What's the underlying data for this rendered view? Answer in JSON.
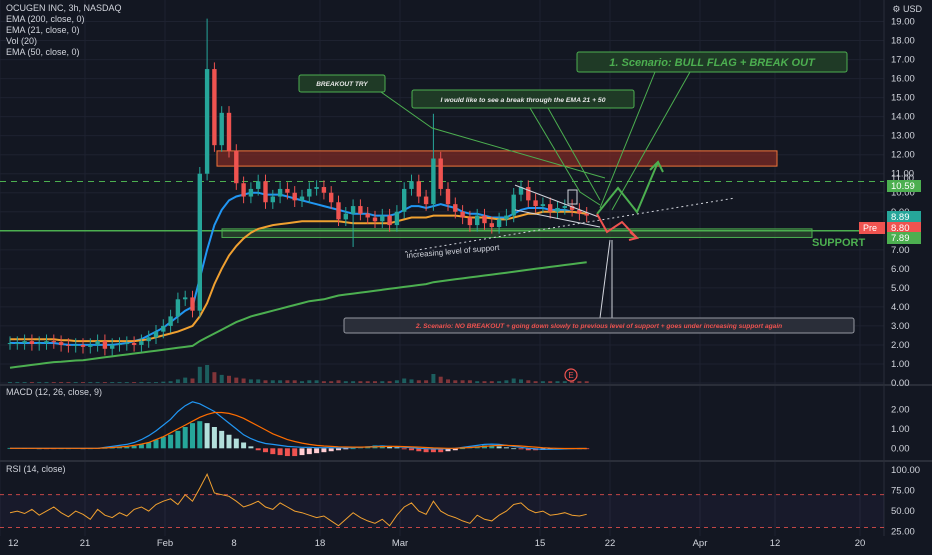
{
  "header": {
    "symbol_line": "OCUGEN INC, 3h, NASDAQ",
    "indicators": [
      "EMA (200, close, 0)",
      "EMA (21, close, 0)",
      "Vol (20)",
      "EMA (50, close, 0)"
    ],
    "currency": "USD",
    "currency_icon": "settings-gear-icon"
  },
  "colors": {
    "background": "#131722",
    "grid": "#1e2230",
    "candle_up": "#26a69a",
    "candle_down": "#ef5350",
    "ema21": "#2196f3",
    "ema50": "#f0a030",
    "ema200": "#4caf50",
    "annotation": "#4caf50",
    "resistance_box": "#7b2a24"
  },
  "chart_data": [
    {
      "type": "candlestick",
      "title": "OCUGEN INC, 3h, NASDAQ",
      "ylim": [
        0,
        19.5
      ],
      "y_ticks": [
        "19.00",
        "18.00",
        "17.00",
        "16.00",
        "15.00",
        "14.00",
        "13.00",
        "12.00",
        "11.00",
        "10.00",
        "9.00",
        "8.00",
        "7.00",
        "6.00",
        "5.00",
        "4.00",
        "3.00",
        "2.00",
        "1.00",
        "0.00"
      ],
      "x_ticks": [
        "12",
        "21",
        "Feb",
        "8",
        "18",
        "Mar",
        "15",
        "22",
        "Apr",
        "12",
        "20"
      ],
      "price_badges": [
        {
          "label": "11.00",
          "kind": "level"
        },
        {
          "label": "10.59",
          "kind": "level"
        },
        {
          "label": "8.89",
          "kind": "last"
        },
        {
          "label": "8.80",
          "kind": "pre",
          "prefix": "Pre"
        },
        {
          "label": "7.89",
          "kind": "support"
        }
      ],
      "levels": {
        "resistance_box": [
          11.4,
          12.2
        ],
        "dashed_line": 10.59,
        "support_line": 8.0,
        "support_box": [
          7.65,
          8.1
        ]
      },
      "price_path": [
        2.1,
        2.1,
        2.2,
        2.05,
        2.1,
        2.2,
        2.15,
        2.0,
        1.95,
        2.0,
        1.9,
        2.0,
        2.2,
        1.8,
        2.0,
        2.05,
        2.1,
        2.0,
        2.2,
        2.4,
        2.7,
        3.0,
        3.5,
        4.4,
        4.5,
        3.8,
        11.0,
        16.5,
        12.5,
        14.2,
        12.2,
        10.5,
        9.8,
        10.2,
        10.6,
        9.5,
        9.8,
        10.2,
        10.0,
        9.6,
        9.8,
        10.2,
        10.3,
        10.0,
        9.5,
        8.6,
        8.9,
        9.3,
        8.9,
        8.7,
        8.5,
        8.8,
        8.3,
        9.0,
        10.2,
        10.6,
        9.8,
        9.4,
        11.8,
        10.2,
        9.4,
        9.0,
        8.7,
        8.3,
        8.8,
        8.4,
        8.2,
        8.6,
        8.8,
        9.9,
        10.3,
        9.6,
        9.3,
        9.4,
        9.0,
        9.2,
        9.3,
        9.1,
        8.9,
        8.8
      ],
      "series": [
        {
          "name": "EMA (21, close, 0)",
          "values": [
            2.1,
            2.1,
            2.1,
            2.1,
            2.1,
            2.1,
            2.1,
            2.05,
            2.0,
            2.0,
            2.0,
            2.0,
            2.0,
            2.0,
            2.0,
            2.05,
            2.1,
            2.2,
            2.3,
            2.5,
            2.7,
            2.9,
            3.2,
            3.5,
            3.8,
            4.0,
            5.5,
            7.0,
            8.3,
            9.1,
            9.6,
            9.8,
            9.9,
            10.0,
            10.0,
            9.9,
            9.9,
            9.9,
            9.8,
            9.7,
            9.6,
            9.5,
            9.4,
            9.3,
            9.2,
            9.1,
            9.0,
            8.9,
            8.9,
            8.9,
            8.8,
            8.8,
            8.8,
            8.9,
            9.1,
            9.3,
            9.3,
            9.2,
            9.3,
            9.4,
            9.3,
            9.2,
            9.0,
            8.9,
            8.9,
            8.8,
            8.7,
            8.7,
            8.7,
            8.9,
            9.1,
            9.2,
            9.2,
            9.2,
            9.1,
            9.1,
            9.1,
            9.0,
            8.95,
            8.9
          ]
        },
        {
          "name": "EMA (50, close, 0)",
          "values": [
            2.3,
            2.3,
            2.3,
            2.3,
            2.3,
            2.3,
            2.3,
            2.25,
            2.25,
            2.2,
            2.2,
            2.2,
            2.2,
            2.2,
            2.2,
            2.2,
            2.2,
            2.2,
            2.25,
            2.3,
            2.4,
            2.5,
            2.6,
            2.7,
            2.85,
            3.0,
            3.5,
            4.2,
            5.2,
            6.0,
            6.7,
            7.2,
            7.6,
            7.9,
            8.1,
            8.2,
            8.3,
            8.35,
            8.4,
            8.45,
            8.5,
            8.5,
            8.5,
            8.5,
            8.5,
            8.5,
            8.45,
            8.4,
            8.4,
            8.4,
            8.4,
            8.4,
            8.4,
            8.5,
            8.6,
            8.7,
            8.7,
            8.7,
            8.8,
            8.8,
            8.8,
            8.8,
            8.75,
            8.7,
            8.7,
            8.7,
            8.65,
            8.6,
            8.6,
            8.7,
            8.8,
            8.9,
            8.9,
            9.0,
            9.0,
            9.0,
            9.0,
            9.0,
            8.95,
            8.9
          ]
        },
        {
          "name": "EMA (200, close, 0)",
          "values": [
            0.8,
            0.85,
            0.9,
            0.95,
            1.0,
            1.05,
            1.1,
            1.12,
            1.15,
            1.18,
            1.2,
            1.25,
            1.3,
            1.35,
            1.4,
            1.45,
            1.5,
            1.55,
            1.6,
            1.65,
            1.7,
            1.75,
            1.8,
            1.85,
            1.9,
            1.95,
            2.2,
            2.4,
            2.6,
            2.8,
            3.0,
            3.2,
            3.35,
            3.5,
            3.6,
            3.7,
            3.8,
            3.9,
            4.0,
            4.1,
            4.2,
            4.3,
            4.35,
            4.4,
            4.5,
            4.6,
            4.65,
            4.7,
            4.75,
            4.8,
            4.85,
            4.9,
            4.95,
            5.0,
            5.05,
            5.1,
            5.15,
            5.2,
            5.3,
            5.35,
            5.4,
            5.45,
            5.5,
            5.55,
            5.6,
            5.65,
            5.7,
            5.75,
            5.8,
            5.85,
            5.9,
            5.95,
            6.0,
            6.05,
            6.1,
            6.15,
            6.2,
            6.25,
            6.3,
            6.35
          ]
        }
      ],
      "volume": [
        0.1,
        0.1,
        0.1,
        0.1,
        0.1,
        0.1,
        0.1,
        0.1,
        0.1,
        0.1,
        0.1,
        0.1,
        0.1,
        0.1,
        0.1,
        0.1,
        0.1,
        0.1,
        0.1,
        0.1,
        0.1,
        0.15,
        0.2,
        0.4,
        0.6,
        0.5,
        1.8,
        2.0,
        1.2,
        0.9,
        0.8,
        0.6,
        0.5,
        0.4,
        0.4,
        0.3,
        0.3,
        0.3,
        0.3,
        0.3,
        0.2,
        0.3,
        0.3,
        0.2,
        0.2,
        0.3,
        0.2,
        0.2,
        0.2,
        0.2,
        0.2,
        0.2,
        0.2,
        0.3,
        0.5,
        0.4,
        0.3,
        0.3,
        1.0,
        0.7,
        0.4,
        0.3,
        0.3,
        0.3,
        0.2,
        0.2,
        0.2,
        0.2,
        0.3,
        0.5,
        0.4,
        0.3,
        0.2,
        0.2,
        0.2,
        0.2,
        0.2,
        0.2,
        0.2,
        0.2
      ]
    },
    {
      "type": "bar",
      "title": "MACD (12, 26, close, 9)",
      "ylim": [
        -0.5,
        2.7
      ],
      "y_ticks": [
        "2.00",
        "1.00",
        "0.00"
      ],
      "histogram": [
        0.02,
        0.02,
        0.01,
        0.01,
        0.0,
        -0.01,
        -0.01,
        0.0,
        0.0,
        0.01,
        0.0,
        0.0,
        0.01,
        0.02,
        0.03,
        0.05,
        0.08,
        0.12,
        0.2,
        0.3,
        0.45,
        0.6,
        0.7,
        0.9,
        1.1,
        1.3,
        1.4,
        1.3,
        1.1,
        0.9,
        0.7,
        0.5,
        0.3,
        0.1,
        -0.1,
        -0.2,
        -0.3,
        -0.35,
        -0.4,
        -0.4,
        -0.35,
        -0.3,
        -0.25,
        -0.2,
        -0.15,
        -0.1,
        -0.05,
        0.0,
        0.05,
        0.1,
        0.15,
        0.15,
        0.1,
        0.05,
        -0.05,
        -0.1,
        -0.15,
        -0.2,
        -0.2,
        -0.2,
        -0.15,
        -0.1,
        0.0,
        0.05,
        0.1,
        0.15,
        0.15,
        0.1,
        0.05,
        0.0,
        -0.05,
        -0.1,
        -0.1,
        -0.08,
        -0.05,
        -0.03,
        -0.02,
        -0.02,
        -0.01,
        -0.01
      ],
      "series": [
        {
          "name": "MACD",
          "values": [
            0.0,
            0.0,
            0.0,
            0.0,
            0.0,
            0.0,
            0.0,
            0.0,
            0.0,
            0.0,
            0.0,
            0.0,
            0.0,
            0.05,
            0.1,
            0.15,
            0.2,
            0.3,
            0.45,
            0.65,
            0.9,
            1.2,
            1.5,
            1.9,
            2.2,
            2.4,
            2.3,
            2.1,
            1.9,
            1.6,
            1.3,
            1.0,
            0.7,
            0.5,
            0.35,
            0.25,
            0.2,
            0.15,
            0.1,
            0.08,
            0.05,
            0.05,
            0.03,
            0.03,
            0.03,
            0.02,
            0.02,
            0.03,
            0.05,
            0.08,
            0.1,
            0.12,
            0.1,
            0.08,
            0.05,
            0.03,
            0.0,
            -0.02,
            -0.03,
            -0.03,
            -0.02,
            0.0,
            0.05,
            0.1,
            0.15,
            0.2,
            0.22,
            0.2,
            0.15,
            0.1,
            0.05,
            0.0,
            -0.03,
            -0.05,
            -0.05,
            -0.04,
            -0.03,
            -0.02,
            -0.01,
            -0.01
          ]
        },
        {
          "name": "Signal",
          "values": [
            0.0,
            0.0,
            0.0,
            0.0,
            0.0,
            0.0,
            0.0,
            0.0,
            0.0,
            0.0,
            0.0,
            0.0,
            0.0,
            0.02,
            0.04,
            0.07,
            0.1,
            0.15,
            0.22,
            0.3,
            0.45,
            0.6,
            0.8,
            1.0,
            1.2,
            1.4,
            1.6,
            1.75,
            1.85,
            1.85,
            1.8,
            1.7,
            1.55,
            1.35,
            1.15,
            0.95,
            0.75,
            0.6,
            0.45,
            0.35,
            0.27,
            0.2,
            0.15,
            0.12,
            0.1,
            0.08,
            0.07,
            0.06,
            0.06,
            0.07,
            0.08,
            0.09,
            0.1,
            0.1,
            0.09,
            0.08,
            0.06,
            0.04,
            0.02,
            0.01,
            0.0,
            0.0,
            0.02,
            0.04,
            0.07,
            0.1,
            0.13,
            0.15,
            0.15,
            0.14,
            0.12,
            0.09,
            0.06,
            0.03,
            0.01,
            0.0,
            -0.01,
            -0.01,
            -0.01,
            -0.01
          ]
        }
      ]
    },
    {
      "type": "line",
      "title": "RSI (14, close)",
      "ylim": [
        22,
        105
      ],
      "y_ticks": [
        "100.00",
        "75.00",
        "50.00",
        "25.00"
      ],
      "bands": [
        70,
        30
      ],
      "series": [
        {
          "name": "RSI",
          "values": [
            48,
            50,
            47,
            52,
            45,
            50,
            55,
            48,
            43,
            50,
            46,
            40,
            52,
            45,
            42,
            48,
            44,
            52,
            55,
            50,
            58,
            62,
            65,
            58,
            70,
            62,
            78,
            95,
            72,
            70,
            68,
            62,
            55,
            58,
            62,
            55,
            52,
            60,
            55,
            50,
            48,
            45,
            42,
            44,
            38,
            32,
            40,
            48,
            42,
            38,
            35,
            40,
            32,
            45,
            55,
            60,
            50,
            46,
            62,
            50,
            45,
            42,
            38,
            35,
            45,
            40,
            38,
            45,
            50,
            58,
            60,
            52,
            48,
            50,
            45,
            46,
            48,
            45,
            44,
            46
          ]
        }
      ]
    }
  ],
  "annotations": {
    "breakout_try": "BREAKOUT TRY",
    "ema_note": "I would like to see a break through the EMA 21 + 50",
    "scenario1": "1. Scenario: BULL FLAG + BREAK OUT",
    "support_label": "SUPPORT",
    "increasing_support": "increasing level of support",
    "scenario2": "2. Scenario: NO BREAKOUT + going down slowly to previous level of support + goes under increasing support again",
    "earnings_marker": "E"
  }
}
